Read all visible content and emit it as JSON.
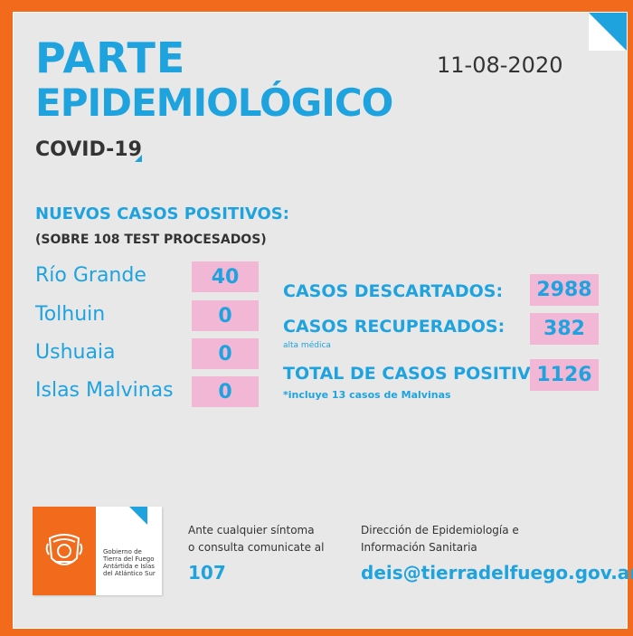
{
  "header": {
    "title_line1": "PARTE",
    "title_line2": "EPIDEMIOLÓGICO",
    "subtitle": "COVID-19",
    "date": "11-08-2020"
  },
  "new_cases": {
    "heading": "NUEVOS CASOS POSITIVOS:",
    "subheading": "(SOBRE 108 TEST PROCESADOS)",
    "locations": [
      {
        "name": "Río Grande",
        "value": "40"
      },
      {
        "name": "Tolhuin",
        "value": "0"
      },
      {
        "name": "Ushuaia",
        "value": "0"
      },
      {
        "name": "Islas Malvinas",
        "value": "0"
      }
    ]
  },
  "stats": {
    "descartados": {
      "label": "CASOS DESCARTADOS:",
      "value": "2988"
    },
    "recuperados": {
      "label": "CASOS RECUPERADOS:",
      "value": "382",
      "note": "alta médica"
    },
    "total": {
      "label": "TOTAL DE CASOS POSITIVOS",
      "value": "1126",
      "note": "*incluye 13 casos de Malvinas"
    }
  },
  "footer": {
    "logo_text_lines": [
      "Gobierno de",
      "Tierra del Fuego",
      "Antártida e Islas",
      "del Atlántico Sur"
    ],
    "contact_line1": "Ante cualquier síntoma",
    "contact_line2": "o consulta comunicate al",
    "phone": "107",
    "org_line1": "Dirección de Epidemiología e",
    "org_line2": "Información Sanitaria",
    "email": "deis@tierradelfuego.gov.ar"
  },
  "colors": {
    "accent_blue": "#1fa3df",
    "brand_orange": "#f26b1d",
    "value_pink": "#f3b7d6",
    "panel_gray": "#e8e8e8"
  }
}
